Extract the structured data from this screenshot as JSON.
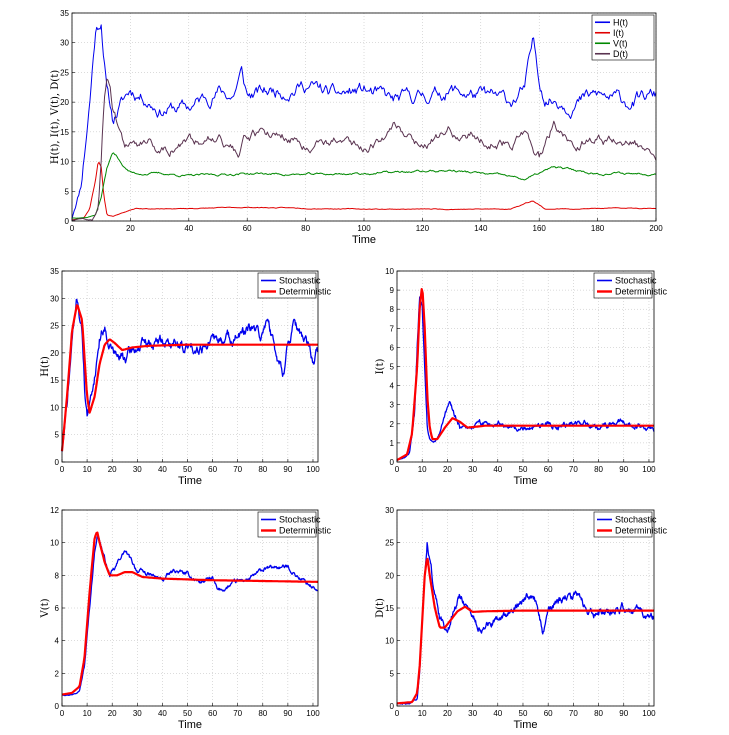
{
  "chart_data": [
    {
      "type": "line",
      "id": "top",
      "xlabel": "Time",
      "ylabel": "H(t), I(t), V(t), D(t)",
      "xlim": [
        0,
        200
      ],
      "ylim": [
        0,
        35
      ],
      "xticks": [
        0,
        20,
        40,
        60,
        80,
        100,
        120,
        140,
        160,
        180,
        200
      ],
      "yticks": [
        0,
        5,
        10,
        15,
        20,
        25,
        30,
        35
      ],
      "grid": true,
      "legend": "top-right",
      "series": [
        {
          "name": "H(t)",
          "color": "#0000ee",
          "noise": 1.6,
          "seed": 11,
          "x": [
            0,
            3,
            6,
            8,
            10,
            12,
            14,
            16,
            20,
            25,
            30,
            40,
            50,
            55,
            58,
            60,
            70,
            80,
            90,
            100,
            110,
            120,
            130,
            140,
            150,
            155,
            158,
            160,
            162,
            170,
            180,
            190,
            200
          ],
          "values": [
            0.5,
            6,
            20,
            32,
            34,
            22,
            17,
            19,
            22,
            21,
            19,
            19,
            22,
            21,
            25,
            21,
            22,
            23,
            21,
            22,
            20,
            21,
            22,
            21,
            20,
            22,
            30,
            24,
            21,
            20,
            21,
            20,
            21
          ]
        },
        {
          "name": "I(t)",
          "color": "#e00000",
          "noise": 0.35,
          "seed": 23,
          "x": [
            0,
            4,
            6,
            8,
            9,
            10,
            11,
            12,
            14,
            18,
            22,
            30,
            60,
            100,
            150,
            158,
            162,
            200
          ],
          "values": [
            0.2,
            0.5,
            2,
            7,
            10,
            9,
            4,
            1,
            0.8,
            1.5,
            2.2,
            2,
            2.3,
            2,
            2,
            3.5,
            2,
            2.2
          ]
        },
        {
          "name": "V(t)",
          "color": "#008800",
          "noise": 0.3,
          "seed": 37,
          "x": [
            0,
            5,
            8,
            10,
            12,
            14,
            16,
            18,
            20,
            22,
            30,
            40,
            60,
            80,
            100,
            130,
            150,
            155,
            165,
            180,
            200
          ],
          "values": [
            0.5,
            0.6,
            1,
            4,
            9,
            11.5,
            10.5,
            9,
            8.2,
            8,
            8,
            7.6,
            8,
            7.8,
            8,
            8.5,
            7.5,
            7,
            9,
            8,
            8
          ]
        },
        {
          "name": "D(t)",
          "color": "#5a3350",
          "noise": 1.2,
          "seed": 59,
          "x": [
            0,
            7,
            9,
            10,
            11,
            12,
            13,
            14,
            16,
            18,
            22,
            26,
            30,
            40,
            50,
            57,
            60,
            70,
            80,
            90,
            100,
            110,
            120,
            130,
            140,
            150,
            155,
            160,
            165,
            170,
            180,
            190,
            200
          ],
          "values": [
            0.2,
            0.3,
            2,
            10,
            20,
            25,
            24,
            20,
            16,
            13,
            12,
            14,
            12,
            13,
            15,
            11,
            14,
            15,
            13,
            14,
            12,
            16,
            13,
            15,
            14,
            13,
            15,
            11,
            16,
            13,
            14,
            13,
            12
          ]
        }
      ]
    },
    {
      "type": "line",
      "id": "H",
      "xlabel": "Time",
      "ylabel": "H(t)",
      "xlim": [
        0,
        102
      ],
      "ylim": [
        0,
        35
      ],
      "xticks": [
        0,
        10,
        20,
        30,
        40,
        50,
        60,
        70,
        80,
        90,
        100
      ],
      "yticks": [
        0,
        5,
        10,
        15,
        20,
        25,
        30,
        35
      ],
      "grid": true,
      "legend": "top-right",
      "series": [
        {
          "name": "Stochastic",
          "color": "#0000ee",
          "noise": 1.4,
          "seed": 71,
          "x": [
            0,
            2,
            4,
            6,
            8,
            9,
            10,
            11,
            13,
            15,
            17,
            19,
            22,
            25,
            30,
            40,
            50,
            60,
            70,
            75,
            80,
            82,
            85,
            88,
            92,
            95,
            100,
            102
          ],
          "values": [
            2,
            10,
            22,
            30,
            24,
            14,
            9,
            10,
            16,
            23,
            25,
            22,
            19,
            19,
            21,
            22,
            21,
            22,
            23,
            24,
            23,
            27,
            20,
            17,
            25,
            23,
            19,
            20
          ]
        },
        {
          "name": "Deterministic",
          "color": "#ff0000",
          "noise": 0,
          "seed": 1,
          "x": [
            0,
            2,
            4,
            6,
            8,
            10,
            11,
            13,
            15,
            17,
            19,
            21,
            24,
            28,
            35,
            50,
            102
          ],
          "values": [
            2,
            12,
            24,
            29,
            26,
            12,
            9,
            12,
            18,
            21.5,
            22.5,
            21.8,
            20.5,
            21,
            21.3,
            21.5,
            21.5
          ]
        }
      ]
    },
    {
      "type": "line",
      "id": "I",
      "xlabel": "Time",
      "ylabel": "I(t)",
      "xlim": [
        0,
        102
      ],
      "ylim": [
        0,
        10
      ],
      "xticks": [
        0,
        10,
        20,
        30,
        40,
        50,
        60,
        70,
        80,
        90,
        100
      ],
      "yticks": [
        0,
        1,
        2,
        3,
        4,
        5,
        6,
        7,
        8,
        9,
        10
      ],
      "grid": true,
      "legend": "top-right",
      "series": [
        {
          "name": "Stochastic",
          "color": "#0000ee",
          "noise": 0.25,
          "seed": 83,
          "x": [
            0,
            3,
            5,
            7,
            8,
            9,
            10,
            11,
            12,
            13,
            14,
            15,
            17,
            19,
            21,
            23,
            25,
            27,
            30,
            35,
            40,
            50,
            60,
            70,
            80,
            90,
            100,
            102
          ],
          "values": [
            0.1,
            0.2,
            0.5,
            2.5,
            6,
            9,
            8.5,
            5,
            2,
            1.2,
            1,
            1,
            1.5,
            2.3,
            3,
            2.5,
            1.8,
            1.7,
            1.9,
            2,
            2.1,
            1.8,
            2,
            2,
            1.9,
            2,
            1.8,
            1.7
          ]
        },
        {
          "name": "Deterministic",
          "color": "#ff0000",
          "noise": 0,
          "seed": 1,
          "x": [
            0,
            4,
            6,
            8,
            9,
            10,
            11,
            12,
            13,
            14,
            16,
            19,
            22,
            25,
            28,
            35,
            50,
            102
          ],
          "values": [
            0.1,
            0.4,
            1.5,
            5,
            8,
            9.3,
            7,
            3.5,
            1.8,
            1.2,
            1.2,
            1.8,
            2.3,
            2.1,
            1.8,
            1.9,
            1.9,
            1.9
          ]
        }
      ]
    },
    {
      "type": "line",
      "id": "V",
      "xlabel": "Time",
      "ylabel": "V(t)",
      "xlim": [
        0,
        102
      ],
      "ylim": [
        0,
        12
      ],
      "xticks": [
        0,
        10,
        20,
        30,
        40,
        50,
        60,
        70,
        80,
        90,
        100
      ],
      "yticks": [
        0,
        2,
        4,
        6,
        8,
        10,
        12
      ],
      "grid": true,
      "legend": "top-right",
      "series": [
        {
          "name": "Stochastic",
          "color": "#0000ee",
          "noise": 0.18,
          "seed": 97,
          "x": [
            0,
            4,
            7,
            9,
            11,
            13,
            14,
            15,
            17,
            19,
            21,
            23,
            25,
            27,
            30,
            35,
            40,
            45,
            50,
            55,
            60,
            62,
            65,
            70,
            75,
            80,
            85,
            90,
            95,
            100,
            102
          ],
          "values": [
            0.7,
            0.7,
            1,
            2.5,
            6,
            9.5,
            10.5,
            10.2,
            9,
            8,
            8.3,
            9,
            9.5,
            9,
            8.3,
            8,
            7.7,
            8.3,
            8,
            7.6,
            7.8,
            7,
            7.2,
            7.6,
            7.8,
            8.3,
            8.5,
            8.5,
            7.8,
            7.3,
            7
          ]
        },
        {
          "name": "Deterministic",
          "color": "#ff0000",
          "noise": 0,
          "seed": 1,
          "x": [
            0,
            4,
            7,
            9,
            11,
            13,
            14,
            15,
            17,
            19,
            22,
            25,
            28,
            32,
            40,
            60,
            102
          ],
          "values": [
            0.7,
            0.8,
            1.2,
            3,
            7,
            10.3,
            10.7,
            10,
            8.8,
            8,
            8,
            8.2,
            8.2,
            7.9,
            7.8,
            7.7,
            7.6
          ]
        }
      ]
    },
    {
      "type": "line",
      "id": "D",
      "xlabel": "Time",
      "ylabel": "D(t)",
      "xlim": [
        0,
        102
      ],
      "ylim": [
        0,
        30
      ],
      "xticks": [
        0,
        10,
        20,
        30,
        40,
        50,
        60,
        70,
        80,
        90,
        100
      ],
      "yticks": [
        0,
        5,
        10,
        15,
        20,
        25,
        30
      ],
      "grid": true,
      "legend": "top-right",
      "series": [
        {
          "name": "Stochastic",
          "color": "#0000ee",
          "noise": 0.9,
          "seed": 113,
          "x": [
            0,
            5,
            8,
            9,
            10,
            11,
            12,
            13,
            15,
            17,
            19,
            21,
            23,
            25,
            27,
            30,
            35,
            40,
            45,
            50,
            55,
            58,
            60,
            65,
            70,
            75,
            80,
            90,
            100,
            102
          ],
          "values": [
            0.4,
            0.5,
            1,
            5,
            12,
            20,
            25,
            23,
            17,
            13,
            12,
            13,
            15,
            17,
            16,
            13,
            12,
            13,
            14,
            17,
            16,
            11,
            15,
            16,
            17,
            15,
            14,
            15,
            14,
            14
          ]
        },
        {
          "name": "Deterministic",
          "color": "#ff0000",
          "noise": 0,
          "seed": 1,
          "x": [
            0,
            6,
            8,
            9,
            10,
            11,
            12,
            13,
            15,
            17,
            19,
            21,
            24,
            27,
            30,
            35,
            50,
            102
          ],
          "values": [
            0.4,
            0.6,
            2,
            6,
            13,
            20,
            23,
            20,
            15,
            12,
            12,
            13,
            14.5,
            15.2,
            14.4,
            14.5,
            14.6,
            14.6
          ]
        }
      ]
    }
  ]
}
